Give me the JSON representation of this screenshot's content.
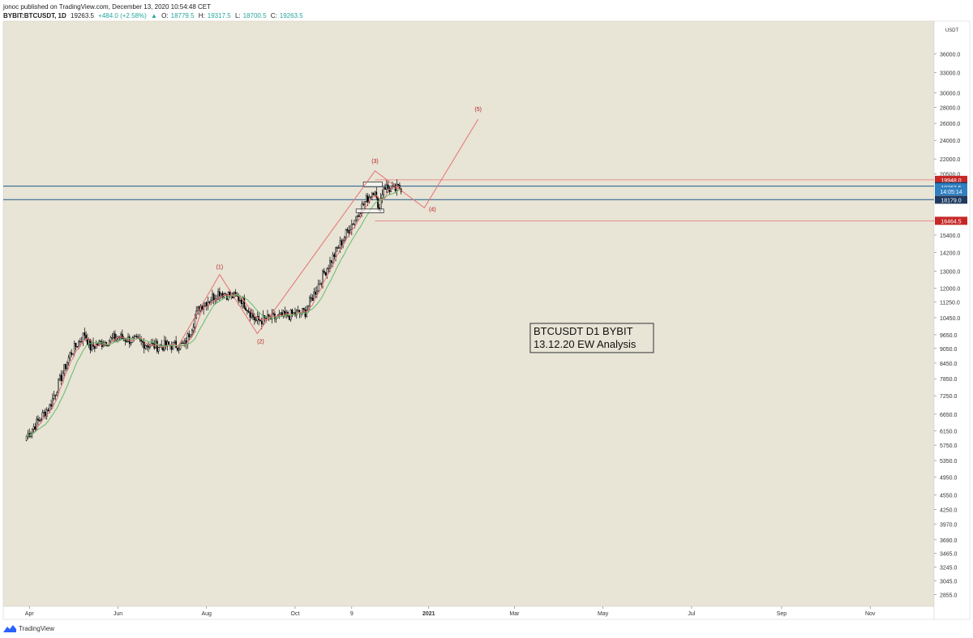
{
  "header": {
    "published_line": "jonoc published on TradingView.com, December 13, 2020 10:54:48 CET",
    "symbol": "BYBIT:BTCUSDT, 1D",
    "last": "19263.5",
    "change_arrow": "▲",
    "change": "+484.0 (+2.58%)",
    "open_label": "O:",
    "open": "18779.5",
    "high_label": "H:",
    "high": "19317.5",
    "low_label": "L:",
    "low": "18700.5",
    "close_label": "C:",
    "close": "19263.5"
  },
  "footer": {
    "brand": "TradingView"
  },
  "colors": {
    "background": "#e8e4d6",
    "frame": "#ffffff",
    "candle_body": "#ffffff",
    "candle_outline": "#000000",
    "ma_red": "#e57373",
    "ma_green": "#66bb6a",
    "wave_line": "#e57373",
    "wave_label": "#b71c1c",
    "hline_blue": "#1e5b8a",
    "hline_red": "#e57373",
    "label_red": "#c62828",
    "label_dark_blue": "#1e3a5f",
    "label_light_blue": "#2f7fc1"
  },
  "chart_data": {
    "type": "candlestick",
    "symbol": "BYBIT:BTCUSDT",
    "timeframe": "1D",
    "scale": "log",
    "y_unit": "USDT",
    "ylim": [
      2700,
      42000
    ],
    "x_range": [
      "2020-03-14",
      "2021-12-15"
    ],
    "xticks": [
      {
        "date": "2020-04-01",
        "label": "Apr"
      },
      {
        "date": "2020-06-01",
        "label": "Jun"
      },
      {
        "date": "2020-08-01",
        "label": "Aug"
      },
      {
        "date": "2020-10-01",
        "label": "Oct"
      },
      {
        "date": "2020-11-09",
        "label": "9"
      },
      {
        "date": "2021-01-01",
        "label": "2021"
      },
      {
        "date": "2021-03-01",
        "label": "Mar"
      },
      {
        "date": "2021-05-01",
        "label": "May"
      },
      {
        "date": "2021-07-01",
        "label": "Jul"
      },
      {
        "date": "2021-09-01",
        "label": "Sep"
      },
      {
        "date": "2021-11-01",
        "label": "Nov"
      }
    ],
    "yticks": [
      36000,
      33000,
      30000,
      28000,
      26000,
      24000,
      22000,
      20500,
      15400,
      14200,
      13000,
      12000,
      11250,
      10450,
      9650,
      9050,
      8450,
      7850,
      7250,
      6650,
      6150,
      5750,
      5350,
      4950,
      4550,
      4250,
      3970,
      3690,
      3465,
      3245,
      3045,
      2855
    ],
    "ytick_labels": [
      "36000.0",
      "33000.0",
      "30000.0",
      "28000.0",
      "26000.0",
      "24000.0",
      "22000.0",
      "20500.0",
      "15400.0",
      "14200.0",
      "13000.0",
      "12000.0",
      "11250.0",
      "10450.0",
      "9650.0",
      "9050.0",
      "8450.0",
      "7850.0",
      "7250.0",
      "6650.0",
      "6150.0",
      "5750.0",
      "5350.0",
      "4950.0",
      "4550.0",
      "4250.0",
      "3970.0",
      "3690.0",
      "3465.0",
      "3245.0",
      "3045.0",
      "2855.0"
    ],
    "axis_top_label": "USDT",
    "price_labels": [
      {
        "value": 19948.0,
        "text": "19948.0",
        "style": "red"
      },
      {
        "value": 19366.0,
        "text": "19366.0",
        "style": "dark"
      },
      {
        "value": 19263.5,
        "text": "19263.5",
        "style": "light"
      },
      {
        "value": 18900.0,
        "text": "14:05:14",
        "style": "light"
      },
      {
        "value": 18179.0,
        "text": "18179.0",
        "style": "dark"
      },
      {
        "value": 16464.5,
        "text": "16464.5",
        "style": "red"
      }
    ],
    "horizontal_lines": [
      {
        "value": 19948.0,
        "color": "red",
        "x_from": "2020-11-25"
      },
      {
        "value": 19366.0,
        "color": "blue",
        "x_from": "2020-03-14"
      },
      {
        "value": 18179.0,
        "color": "blue",
        "x_from": "2020-03-14"
      },
      {
        "value": 16464.5,
        "color": "red",
        "x_from": "2020-11-25"
      }
    ],
    "rectangles": [
      {
        "x_from": "2020-11-17",
        "x_to": "2020-11-30",
        "y_from": 19300,
        "y_to": 19750
      },
      {
        "x_from": "2020-11-12",
        "x_to": "2020-12-01",
        "y_from": 17100,
        "y_to": 17400
      }
    ],
    "waves": [
      {
        "label": "(1)",
        "x": "2020-08-10",
        "y": 12800
      },
      {
        "label": "(2)",
        "x": "2020-09-05",
        "y": 9700
      },
      {
        "label": "(3)",
        "x": "2020-11-25",
        "y": 20800
      },
      {
        "label": "(4)",
        "x": "2020-12-29",
        "y": 17500
      },
      {
        "label": "(5)",
        "x": "2021-02-04",
        "y": 26500
      }
    ],
    "wave_path_start": {
      "x": "2020-07-12",
      "y": 9100
    },
    "candles_anchors": [
      {
        "x": "2020-03-30",
        "y": 6000
      },
      {
        "x": "2020-04-15",
        "y": 6900
      },
      {
        "x": "2020-04-29",
        "y": 8800
      },
      {
        "x": "2020-05-09",
        "y": 9700
      },
      {
        "x": "2020-05-13",
        "y": 9100
      },
      {
        "x": "2020-06-01",
        "y": 9550
      },
      {
        "x": "2020-06-27",
        "y": 9150
      },
      {
        "x": "2020-07-17",
        "y": 9200
      },
      {
        "x": "2020-07-27",
        "y": 11000
      },
      {
        "x": "2020-08-10",
        "y": 11800
      },
      {
        "x": "2020-08-25",
        "y": 11400
      },
      {
        "x": "2020-09-04",
        "y": 10300
      },
      {
        "x": "2020-09-22",
        "y": 10500
      },
      {
        "x": "2020-10-08",
        "y": 10750
      },
      {
        "x": "2020-10-21",
        "y": 12900
      },
      {
        "x": "2020-11-05",
        "y": 15500
      },
      {
        "x": "2020-11-17",
        "y": 17800
      },
      {
        "x": "2020-11-25",
        "y": 19200
      },
      {
        "x": "2020-11-27",
        "y": 17200
      },
      {
        "x": "2020-12-01",
        "y": 19400
      },
      {
        "x": "2020-12-07",
        "y": 19000
      },
      {
        "x": "2020-12-13",
        "y": 19263.5
      }
    ],
    "annotation": {
      "lines": [
        "BTCUSDT D1 BYBIT",
        "13.12.20 EW Analysis"
      ],
      "x": "2021-04-20",
      "y": 9650
    }
  }
}
